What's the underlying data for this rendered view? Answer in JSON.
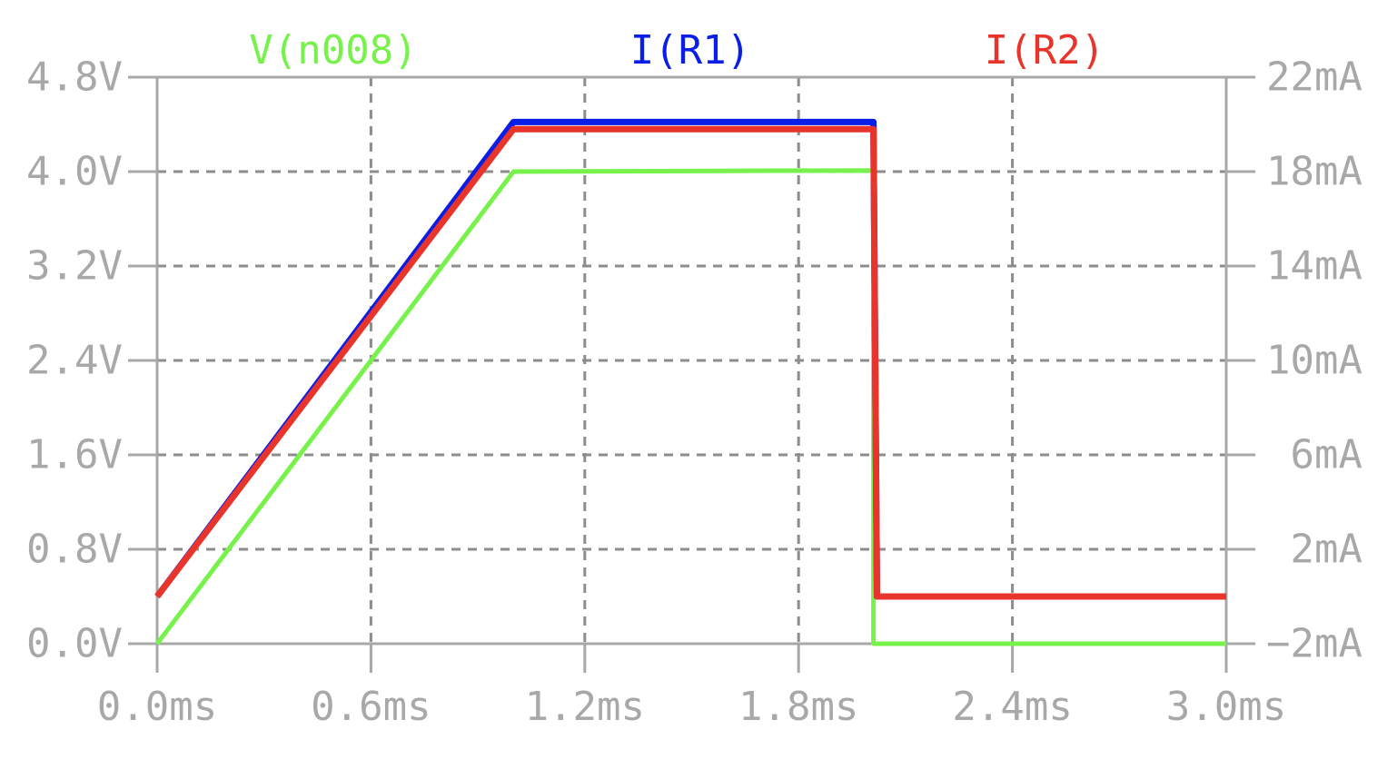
{
  "chart_data": {
    "type": "line",
    "title": "",
    "xlabel": "",
    "ylabel": "",
    "grid": true,
    "legend_position": "top",
    "x_axis": {
      "unit": "ms",
      "range": [
        0.0,
        3.0
      ],
      "ticks": [
        0.0,
        0.6,
        1.2,
        1.8,
        2.4,
        3.0
      ],
      "tick_labels": [
        "0.0ms",
        "0.6ms",
        "1.2ms",
        "1.8ms",
        "2.4ms",
        "3.0ms"
      ]
    },
    "y_left": {
      "unit": "V",
      "range": [
        0.0,
        4.8
      ],
      "ticks": [
        0.0,
        0.8,
        1.6,
        2.4,
        3.2,
        4.0,
        4.8
      ],
      "tick_labels": [
        "0.0V",
        "0.8V",
        "1.6V",
        "2.4V",
        "3.2V",
        "4.0V",
        "4.8V"
      ]
    },
    "y_right": {
      "unit": "mA",
      "range": [
        -2,
        22
      ],
      "ticks": [
        -2,
        2,
        6,
        10,
        14,
        18,
        22
      ],
      "tick_labels": [
        "−2mA",
        "2mA",
        "6mA",
        "10mA",
        "14mA",
        "18mA",
        "22mA"
      ]
    },
    "series": [
      {
        "name": "V(n008)",
        "axis": "left",
        "color": "#77f24a",
        "x": [
          0.0,
          1.0,
          2.01,
          2.01,
          3.0
        ],
        "y": [
          0.0,
          4.0,
          4.01,
          0.0,
          0.0
        ]
      },
      {
        "name": "I(R1)",
        "axis": "right",
        "color": "#0a1ee6",
        "x": [
          0.0,
          1.0,
          2.01,
          2.02,
          3.0
        ],
        "y": [
          0.0,
          20.1,
          20.1,
          0.0,
          0.0
        ]
      },
      {
        "name": "I(R2)",
        "axis": "right",
        "color": "#e8342a",
        "x": [
          0.0,
          1.0,
          2.01,
          2.02,
          3.0
        ],
        "y": [
          0.0,
          19.8,
          19.8,
          0.0,
          0.0
        ]
      }
    ]
  }
}
